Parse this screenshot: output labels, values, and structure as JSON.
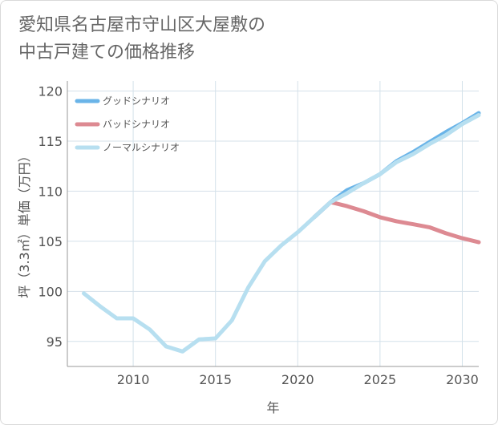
{
  "title_lines": [
    "愛知県名古屋市守山区大屋敷の",
    "中古戸建ての価格推移"
  ],
  "chart_data": {
    "type": "line",
    "xlabel": "年",
    "ylabel": "坪（3.3㎡）単価（万円）",
    "xlim": [
      2006,
      2031
    ],
    "ylim": [
      92.5,
      121
    ],
    "xticks": [
      2010,
      2015,
      2020,
      2025,
      2030
    ],
    "yticks": [
      95,
      100,
      105,
      110,
      115,
      120
    ],
    "grid": true,
    "legend_position": "top-left",
    "series": [
      {
        "name": "グッドシナリオ",
        "color": "#6ab4e8",
        "x": [
          2021,
          2022,
          2023,
          2024,
          2025,
          2026,
          2027,
          2028,
          2029,
          2030,
          2031
        ],
        "y": [
          107.4,
          108.9,
          110.1,
          110.8,
          111.7,
          113.0,
          113.9,
          114.9,
          115.9,
          116.8,
          117.8
        ]
      },
      {
        "name": "バッドシナリオ",
        "color": "#dd8a92",
        "x": [
          2021,
          2022,
          2023,
          2024,
          2025,
          2026,
          2027,
          2028,
          2029,
          2030,
          2031
        ],
        "y": [
          107.4,
          108.9,
          108.5,
          108.0,
          107.4,
          107.0,
          106.7,
          106.4,
          105.8,
          105.3,
          104.9
        ]
      },
      {
        "name": "ノーマルシナリオ",
        "color": "#b7dff0",
        "x": [
          2007,
          2008,
          2009,
          2010,
          2011,
          2012,
          2013,
          2014,
          2015,
          2016,
          2017,
          2018,
          2019,
          2020,
          2021,
          2022,
          2023,
          2024,
          2025,
          2026,
          2027,
          2028,
          2029,
          2030,
          2031
        ],
        "y": [
          99.8,
          98.5,
          97.3,
          97.3,
          96.2,
          94.5,
          94.0,
          95.2,
          95.3,
          97.1,
          100.4,
          103.0,
          104.6,
          105.9,
          107.4,
          108.9,
          109.8,
          110.8,
          111.7,
          112.9,
          113.7,
          114.7,
          115.6,
          116.7,
          117.6
        ]
      }
    ]
  }
}
